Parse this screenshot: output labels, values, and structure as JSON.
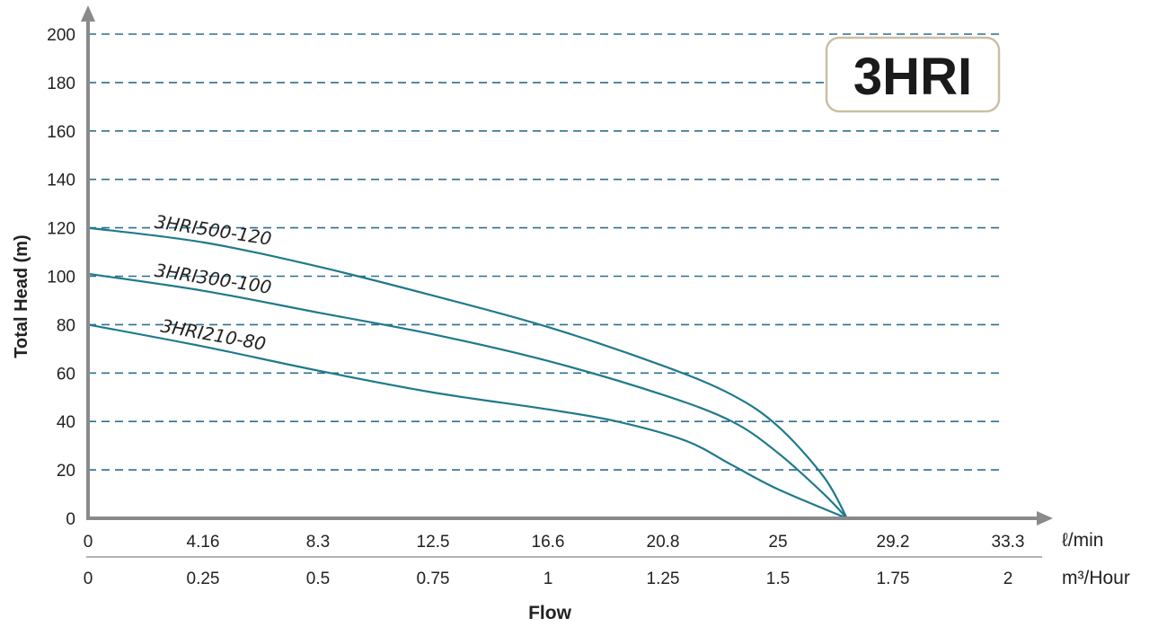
{
  "chart_data": {
    "type": "line",
    "badge": "3HRI",
    "ylabel": "Total Head (m)",
    "xlabel": "Flow",
    "x_unit_primary": "ℓ/min",
    "x_unit_secondary": "m³/Hour",
    "ylim": [
      0,
      200
    ],
    "yticks": [
      "0",
      "20",
      "40",
      "60",
      "80",
      "100",
      "120",
      "140",
      "160",
      "180",
      "200"
    ],
    "xlim": [
      0,
      2
    ],
    "xticks_primary": [
      "0",
      "4.16",
      "8.3",
      "12.5",
      "16.6",
      "20.8",
      "25",
      "29.2",
      "33.3"
    ],
    "xticks_secondary": [
      "0",
      "0.25",
      "0.5",
      "0.75",
      "1",
      "1.25",
      "1.5",
      "1.75",
      "2"
    ],
    "grid": true,
    "series": [
      {
        "name": "3HRI500-120",
        "x": [
          0,
          0.25,
          0.5,
          0.75,
          1.0,
          1.25,
          1.4,
          1.5,
          1.6,
          1.65
        ],
        "y": [
          120,
          114,
          104,
          92,
          79,
          63,
          51,
          38,
          17,
          0
        ]
      },
      {
        "name": "3HRI300-100",
        "x": [
          0,
          0.25,
          0.5,
          0.75,
          1.0,
          1.25,
          1.4,
          1.5,
          1.6,
          1.65
        ],
        "y": [
          101,
          94,
          85,
          76,
          65,
          51,
          40,
          27,
          10,
          0
        ]
      },
      {
        "name": "3HRI210-80",
        "x": [
          0,
          0.25,
          0.5,
          0.75,
          1.0,
          1.15,
          1.3,
          1.4,
          1.5,
          1.65
        ],
        "y": [
          80,
          71,
          61,
          52,
          45,
          40,
          32,
          22,
          12,
          0
        ]
      }
    ]
  }
}
